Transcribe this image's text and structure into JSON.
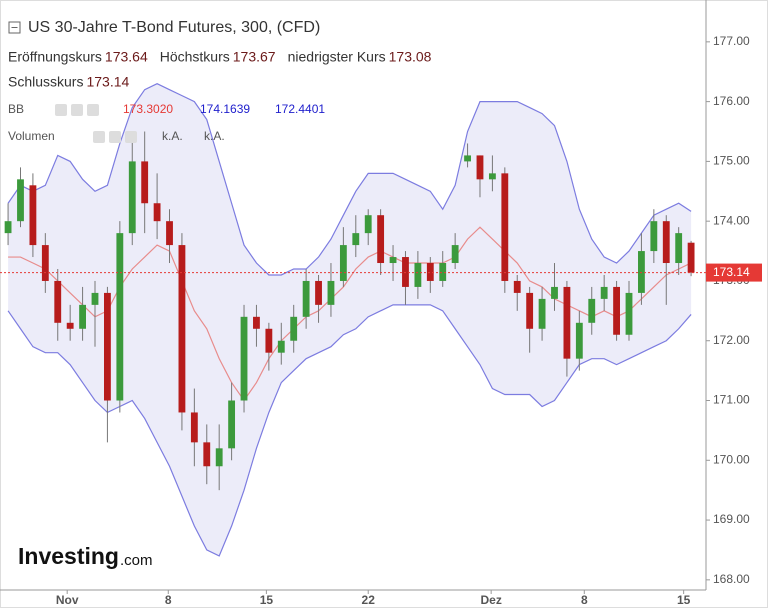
{
  "chart_data": {
    "type": "candlestick",
    "title": "US 30-Jahre T-Bond Futures, 300, (CFD)",
    "ohlc_legend": [
      {
        "label": "Eröffnungskurs",
        "value": "173.64"
      },
      {
        "label": "Höchstkurs",
        "value": "173.67"
      },
      {
        "label": "niedrigster Kurs",
        "value": "173.08"
      },
      {
        "label": "Schlusskurs",
        "value": "173.14"
      }
    ],
    "bb_legend": {
      "label": "BB",
      "values": [
        "173.3020",
        "174.1639",
        "172.4401"
      ],
      "colors": [
        "#e53935",
        "#1e1ecc",
        "#1e1ecc"
      ]
    },
    "volume_legend": {
      "label": "Volumen",
      "values": [
        "k.A.",
        "k.A."
      ]
    },
    "logo": [
      "Investing",
      ".com"
    ],
    "x": [
      0,
      1,
      2,
      3,
      4,
      5,
      6,
      7,
      8,
      9,
      10,
      11,
      12,
      13,
      14,
      15,
      16,
      17,
      18,
      19,
      20,
      21,
      22,
      23,
      24,
      25,
      26,
      27,
      28,
      29,
      30,
      31,
      32,
      33,
      34,
      35,
      36,
      37,
      38,
      39,
      40,
      41,
      42,
      43,
      44,
      45,
      46,
      47,
      48,
      49,
      50,
      51,
      52,
      53,
      54,
      55
    ],
    "open": [
      173.8,
      174.0,
      174.6,
      173.6,
      173.0,
      172.3,
      172.2,
      172.6,
      172.8,
      171.0,
      173.8,
      175.0,
      174.3,
      174.0,
      173.6,
      170.8,
      170.3,
      169.9,
      170.2,
      171.0,
      172.4,
      172.2,
      171.8,
      172.0,
      172.4,
      173.0,
      172.6,
      173.0,
      173.6,
      173.8,
      174.1,
      173.3,
      173.4,
      172.9,
      173.3,
      173.0,
      173.3,
      175.0,
      175.1,
      174.7,
      174.8,
      173.0,
      172.8,
      172.2,
      172.7,
      172.9,
      171.7,
      172.3,
      172.7,
      172.9,
      172.1,
      172.8,
      173.5,
      174.0,
      173.3,
      173.64
    ],
    "high": [
      174.3,
      174.9,
      174.8,
      173.8,
      173.2,
      172.6,
      172.9,
      173.0,
      172.9,
      174.0,
      175.4,
      175.5,
      174.8,
      174.2,
      173.8,
      171.2,
      170.6,
      170.6,
      171.3,
      172.6,
      172.6,
      172.3,
      172.3,
      172.6,
      173.2,
      173.1,
      173.3,
      173.9,
      174.1,
      174.2,
      174.2,
      173.6,
      173.5,
      173.5,
      173.4,
      173.5,
      173.8,
      175.3,
      175.1,
      175.1,
      174.9,
      173.1,
      172.9,
      172.9,
      173.3,
      173.0,
      172.5,
      172.9,
      173.1,
      173.0,
      173.0,
      173.8,
      174.2,
      174.1,
      173.9,
      173.67
    ],
    "low": [
      173.6,
      173.9,
      173.4,
      172.8,
      172.0,
      172.0,
      172.0,
      171.9,
      170.3,
      170.8,
      173.6,
      173.8,
      173.7,
      173.3,
      170.5,
      169.9,
      169.6,
      169.5,
      170.0,
      170.8,
      171.9,
      171.5,
      171.6,
      171.8,
      172.2,
      172.3,
      172.4,
      172.9,
      173.4,
      173.6,
      173.1,
      173.0,
      172.6,
      172.7,
      172.8,
      172.9,
      173.2,
      174.9,
      174.4,
      174.5,
      172.8,
      172.5,
      171.8,
      172.0,
      172.5,
      171.4,
      171.5,
      172.1,
      172.5,
      172.0,
      172.0,
      172.6,
      173.3,
      172.6,
      173.1,
      173.08
    ],
    "close": [
      174.0,
      174.7,
      173.6,
      173.0,
      172.3,
      172.2,
      172.6,
      172.8,
      171.0,
      173.8,
      175.0,
      174.3,
      174.0,
      173.6,
      170.8,
      170.3,
      169.9,
      170.2,
      171.0,
      172.4,
      172.2,
      171.8,
      172.0,
      172.4,
      173.0,
      172.6,
      173.0,
      173.6,
      173.8,
      174.1,
      173.3,
      173.4,
      172.9,
      173.3,
      173.0,
      173.3,
      173.6,
      175.1,
      174.7,
      174.8,
      173.0,
      172.8,
      172.2,
      172.7,
      172.9,
      171.7,
      172.3,
      172.7,
      172.9,
      172.1,
      172.8,
      173.5,
      174.0,
      173.3,
      173.8,
      173.14
    ],
    "up_color": "#3c9a3c",
    "down_color": "#b71c1c",
    "bands": {
      "upper": [
        174.3,
        174.6,
        174.5,
        174.6,
        175.1,
        175.0,
        174.7,
        174.5,
        174.6,
        175.3,
        175.9,
        176.2,
        176.3,
        176.2,
        176.1,
        176.0,
        175.7,
        175.0,
        174.3,
        173.6,
        173.3,
        173.1,
        173.1,
        173.2,
        173.2,
        173.4,
        173.7,
        174.1,
        174.5,
        174.8,
        174.8,
        174.8,
        174.7,
        174.6,
        174.5,
        174.2,
        174.6,
        175.5,
        176.0,
        176.0,
        176.0,
        176.0,
        175.9,
        175.8,
        175.6,
        175.0,
        174.2,
        173.7,
        173.4,
        173.3,
        173.5,
        173.8,
        174.1,
        174.2,
        174.3,
        174.1639
      ],
      "middle": [
        173.4,
        173.4,
        173.3,
        173.2,
        173.0,
        172.8,
        172.6,
        172.4,
        172.5,
        172.9,
        173.2,
        173.4,
        173.6,
        173.5,
        173.0,
        172.5,
        172.2,
        171.7,
        171.3,
        171.0,
        171.3,
        171.7,
        172.0,
        172.2,
        172.4,
        172.5,
        172.7,
        172.9,
        173.2,
        173.4,
        173.5,
        173.4,
        173.3,
        173.3,
        173.3,
        173.3,
        173.4,
        173.7,
        173.9,
        173.7,
        173.5,
        173.3,
        173.0,
        172.9,
        172.7,
        172.6,
        172.5,
        172.4,
        172.5,
        172.4,
        172.5,
        172.7,
        172.9,
        173.1,
        173.2,
        173.302
      ],
      "lower": [
        172.5,
        172.2,
        171.9,
        171.8,
        171.8,
        171.6,
        171.3,
        171.0,
        170.8,
        170.9,
        171.0,
        170.7,
        170.3,
        169.9,
        169.4,
        168.9,
        168.5,
        168.4,
        168.9,
        169.5,
        170.2,
        170.8,
        171.3,
        171.5,
        171.7,
        171.8,
        171.9,
        172.1,
        172.2,
        172.4,
        172.5,
        172.6,
        172.6,
        172.6,
        172.6,
        172.5,
        172.2,
        171.9,
        171.6,
        171.2,
        171.1,
        171.1,
        171.1,
        170.9,
        171.0,
        171.3,
        171.6,
        171.7,
        171.7,
        171.6,
        171.7,
        171.8,
        171.9,
        172.0,
        172.2,
        172.4401
      ],
      "line_color": "#7c7ce0",
      "fill_color": "rgba(130,130,215,0.15)",
      "middle_color": "#e88c8c"
    },
    "last_price_color": "#e53935",
    "xlim": [
      -0.65,
      56.2
    ],
    "xticks": [
      {
        "value": 4.76,
        "label": "Nov"
      },
      {
        "value": 12.9,
        "label": "8"
      },
      {
        "value": 20.8,
        "label": "15"
      },
      {
        "value": 29.0,
        "label": "22"
      },
      {
        "value": 38.9,
        "label": "Dez"
      },
      {
        "value": 46.4,
        "label": "8"
      },
      {
        "value": 54.4,
        "label": "15"
      }
    ],
    "ylim": [
      167.83,
      177.7
    ],
    "yticks": [
      {
        "value": 168,
        "label": "168.00"
      },
      {
        "value": 169,
        "label": "169.00"
      },
      {
        "value": 170,
        "label": "170.00"
      },
      {
        "value": 171,
        "label": "171.00"
      },
      {
        "value": 172,
        "label": "172.00"
      },
      {
        "value": 173,
        "label": "173.00"
      },
      {
        "value": 174,
        "label": "174.00"
      },
      {
        "value": 175,
        "label": "175.00"
      },
      {
        "value": 176,
        "label": "176.00"
      },
      {
        "value": 177,
        "label": "177.00"
      }
    ]
  }
}
